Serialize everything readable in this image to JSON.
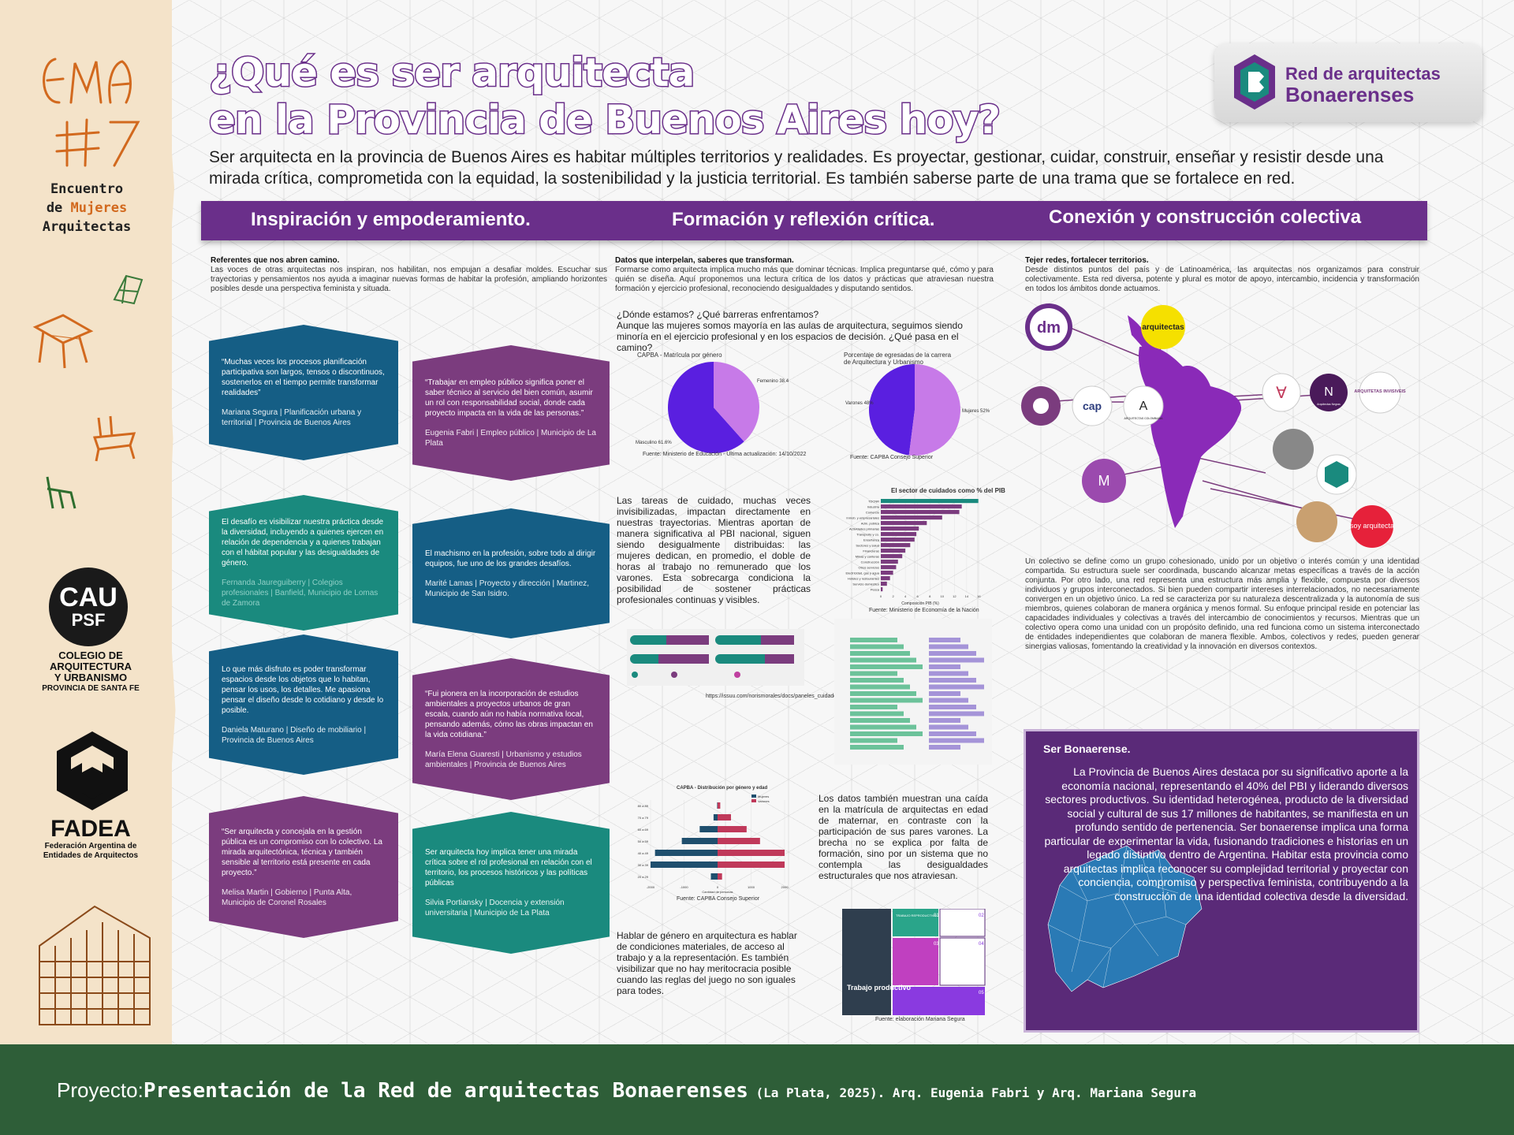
{
  "header": {
    "title_line1": "¿Qué es ser arquitecta",
    "title_line2": "en la Provincia de Buenos Aires hoy?",
    "intro": "Ser arquitecta en la provincia de Buenos Aires es habitar múltiples territorios y realidades. Es proyectar, gestionar, cuidar, construir, enseñar y resistir desde una mirada crítica, comprometida con la equidad, la sostenibilidad y la justicia territorial. Es también saberse parte de una trama que se fortalece en red.",
    "logo_line1": "Red de arquitectas",
    "logo_line2": "Bonaerenses"
  },
  "left_strip": {
    "ema_logo": "EMA #7",
    "ema_line1": "Encuentro",
    "ema_line2_a": "de ",
    "ema_line2_b": "Mujeres",
    "ema_line3": "Arquitectas",
    "cau_big": "CAU",
    "cau_small": "PSF",
    "cau_l1": "COLEGIO DE",
    "cau_l2": "ARQUITECTURA",
    "cau_l3": "Y URBANISMO",
    "cau_l4": "PROVINCIA DE SANTA FE",
    "fadea_name": "FADEA",
    "fadea_sub": "Federación Argentina de Entidades de Arquitectos"
  },
  "sections": {
    "s1": "Inspiración y empoderamiento.",
    "s2": "Formación y reflexión crítica.",
    "s3": "Conexión y construcción colectiva"
  },
  "col1": {
    "head": "Referentes que nos abren camino.",
    "body": "Las voces de otras arquitectas nos inspiran, nos habilitan, nos empujan a desafiar moldes. Escuchar sus trayectorias y pensamientos nos ayuda a imaginar nuevas formas de habitar la profesión, ampliando horizontes posibles desde una perspectiva feminista y situada.",
    "quotes": [
      {
        "text": "“Muchas veces los procesos planificación participativa son largos, tensos o discontinuos, sostenerlos en el tiempo permite transformar realidades”",
        "author": "Mariana Segura | Planificación urbana y territorial | Provincia de Buenos Aires"
      },
      {
        "text": "“Trabajar en empleo público significa poner el saber técnico al servicio del bien común, asumir un rol con responsabilidad social, donde cada proyecto impacta en la vida de las personas.”",
        "author": "Eugenia Fabri | Empleo público | Municipio de La Plata"
      },
      {
        "text": "El desafío es visibilizar nuestra práctica desde la diversidad, incluyendo a quienes ejercen en relación de dependencia y a quienes trabajan con el hábitat popular y las desigualdades de género.",
        "author": "Fernanda Jaureguiberry | Colegios profesionales | Banfield, Municipio de Lomas de Zamora"
      },
      {
        "text": "El machismo en la profesión, sobre todo al dirigir equipos, fue uno de los grandes desafíos.",
        "author": "Marité Lamas | Proyecto y dirección | Martinez, Municipio de San Isidro."
      },
      {
        "text": "Lo que más disfruto es poder transformar espacios desde los objetos que lo habitan, pensar los usos, los detalles. Me apasiona pensar el diseño desde lo cotidiano y desde lo posible.",
        "author": "Daniela Maturano | Diseño de mobiliario | Provincia de Buenos Aires"
      },
      {
        "text": "“Fui pionera en la incorporación de estudios ambientales a proyectos urbanos de gran escala, cuando aún no había normativa local, pensando además, cómo las obras impactan en la vida cotidiana.”",
        "author": "María Elena Guaresti | Urbanismo y estudios ambientales | Provincia de Buenos Aires"
      },
      {
        "text": "“Ser arquitecta y concejala en la gestión pública es un compromiso con lo colectivo. La mirada arquitectónica, técnica y también sensible al territorio está presente en cada proyecto.”",
        "author": "Melisa Martin | Gobierno | Punta Alta, Municipio de Coronel Rosales"
      },
      {
        "text": "Ser arquitecta hoy implica tener una mirada crítica sobre el rol profesional en relación con el territorio, los procesos históricos y las políticas públicas",
        "author": "Silvia Portiansky | Docencia y extensión universitaria | Municipio de La Plata"
      }
    ]
  },
  "col2": {
    "head": "Datos que interpelan, saberes que transforman.",
    "body": "Formarse como arquitecta implica mucho más que dominar técnicas. Implica preguntarse qué, cómo y para quién se diseña. Aquí proponemos una lectura crítica de los datos y prácticas que atraviesan nuestra formación y ejercicio profesional, reconociendo desigualdades y disputando sentidos.",
    "question": "¿Dónde estamos? ¿Qué barreras enfrentamos?",
    "question_body": "Aunque las mujeres somos mayoría en las aulas de arquitectura, seguimos siendo minoría en el ejercicio profesional y en los espacios de decisión. ¿Qué pasa en el camino?",
    "care_text": "Las tareas de cuidado, muchas veces invisibilizadas, impactan directamente en nuestras trayectorias. Mientras aportan de manera significativa al PBI nacional, siguen siendo desigualmente distribuidas: las mujeres dedican, en promedio, el doble de horas al trabajo no remunerado que los varones. Esta sobrecarga condiciona la posibilidad de sostener prácticas profesionales continuas y visibles.",
    "data_text": "Los datos también muestran una caída en la matrícula de arquitectas en edad de maternar, en contraste con la participación de sus pares varones. La brecha no se explica por falta de formación, sino por un sistema que no contempla las desigualdades estructurales que nos atraviesan.",
    "gender_text": "Hablar de género en arquitectura es hablar de condiciones materiales, de acceso al trabajo y a la representación. Es también visibilizar que no hay meritocracia posible cuando las reglas del juego no son iguales para todes.",
    "url": "https://issuu.com/norismorales/docs/paneles_cuidado_final",
    "src_pie1": "Fuente: Ministerio de Educación - Última actualización: 14/10/2022",
    "src_pie2": "Fuente: CAPBA Consejo Superior",
    "src_bar": "Fuente: Ministerio de Economía de la Nación",
    "src_pyramid": "Fuente: CAPBA Consejo Superior",
    "src_diagram": "Fuente: elaboración Mariana Segura",
    "pyramid_legend_a": "Mujeres",
    "pyramid_legend_b": "Varones",
    "pyramid_xlabel": "Cantidad de personas",
    "diagram_productivo": "Trabajo productivo",
    "diagram_tag": "TRABAJO REPRODUCTIVO",
    "diagram_n1": "01",
    "diagram_n2": "02",
    "diagram_n3": "03",
    "diagram_n4": "04",
    "diagram_n5": "05"
  },
  "chart_data": [
    {
      "type": "pie",
      "title": "CAPBA - Matrícula por género",
      "labels": [
        "Masculino",
        "Femenino"
      ],
      "values": [
        61.6,
        38.4
      ],
      "label_texts": [
        "Masculino 61.6%",
        "Femenino 38.4%"
      ],
      "colors": [
        "#5a1fe0",
        "#c77ae8"
      ]
    },
    {
      "type": "pie",
      "title": "Porcentaje de egresadas de la carrera de Arquitectura y Urbanismo",
      "labels": [
        "Varones",
        "Mujeres"
      ],
      "values": [
        48,
        52
      ],
      "label_texts": [
        "Varones 48%",
        "Mujeres 52%"
      ],
      "colors": [
        "#5a1fe0",
        "#c77ae8"
      ]
    },
    {
      "type": "bar",
      "title": "El sector de cuidados como % del PIB",
      "xlabel": "Composición PIB (%)",
      "categories": [
        "TDCNR",
        "Industria",
        "Comercio",
        "Inmob. y empresariales",
        "Adm. pública",
        "Actividades primarias",
        "Transporte y co.",
        "Enseñanza",
        "Sectores y salud",
        "Financieras",
        "Minas y canteras",
        "Construcción",
        "Otros servicios",
        "Electricidad, gas y agua",
        "Hoteles y restaurantes",
        "Servicio doméstico",
        "Pesca"
      ],
      "values": [
        15.9,
        13.2,
        12.8,
        10.0,
        7.5,
        6.2,
        5.8,
        5.5,
        4.8,
        4.0,
        3.5,
        2.8,
        2.5,
        2.0,
        1.5,
        1.0,
        0.3
      ],
      "ticks": [
        "0",
        "2",
        "4",
        "6",
        "8",
        "10",
        "12",
        "14",
        "16",
        "18"
      ],
      "xlim": [
        0,
        18
      ]
    },
    {
      "type": "bar",
      "title": "CAPBA - Distribución por género y edad",
      "categories": [
        "80 a 89",
        "70 a 79",
        "60 a 69",
        "50 a 59",
        "40 a 49",
        "30 a 39",
        "20 a 29"
      ],
      "series": [
        {
          "name": "Mujeres",
          "values": [
            20,
            180,
            800,
            1600,
            2800,
            3000,
            300
          ]
        },
        {
          "name": "Varones",
          "values": [
            120,
            600,
            1300,
            1900,
            3000,
            3000,
            200
          ]
        }
      ],
      "ticks": [
        "-2000",
        "-1000",
        "0",
        "1000",
        "2000"
      ]
    }
  ],
  "col3": {
    "head": "Tejer redes, fortalecer territorios.",
    "body": "Desde distintos puntos del país y de Latinoamérica, las arquitectas nos organizamos para construir colectivamente. Esta red diversa, potente y plural es motor de apoyo, intercambio, incidencia y transformación en todos los ámbitos donde actuamos.",
    "net_labels": [
      "arquitectas",
      "Arquitectas Negras",
      "ARQUITETAS INVISIVEIS",
      "ARQUITECTAS COLOMBIANA",
      "soy arquitecta"
    ],
    "long_text": "Un colectivo se define como un grupo cohesionado, unido por un objetivo o interés común y una identidad compartida. Su estructura suele ser coordinada, buscando alcanzar metas específicas a través de la acción conjunta. Por otro lado, una red representa una estructura más amplia y flexible, compuesta por diversos individuos y grupos interconectados. Si bien pueden compartir intereses interrelacionados, no necesariamente convergen en un objetivo único. La red se caracteriza por su naturaleza descentralizada y la autonomía de sus miembros, quienes colaboran de manera orgánica y menos formal. Su enfoque principal reside en potenciar las capacidades individuales y colectivas a través del intercambio de conocimientos y recursos. Mientras que un colectivo opera como una unidad con un propósito definido, una red funciona como un sistema interconectado de entidades independientes que colaboran de manera flexible. Ambos, colectivos y redes, pueden generar sinergias valiosas, fomentando la creatividad y la innovación en diversos contextos.",
    "ser_title": "Ser Bonaerense.",
    "ser_body": "La Provincia de Buenos Aires destaca por su significativo aporte a la economía nacional, representando el 40% del PBI y liderando diversos sectores productivos. Su identidad heterogénea, producto de la diversidad social y cultural de sus 17 millones de habitantes, se manifiesta en un profundo sentido de pertenencia. Ser bonaerense implica una forma particular de experimentar la vida, fusionando tradiciones e historias en un legado distintivo dentro de Argentina. Habitar esta provincia como arquitectas implica reconocer su complejidad territorial y proyectar con conciencia, compromiso y perspectiva feminista, contribuyendo a la construcción de una identidad colectiva desde la diversidad."
  },
  "footer": {
    "prefix": "Proyecto:",
    "project": "Presentación de la Red de arquitectas Bonaerenses",
    "credit": " (La Plata, 2025). Arq. Eugenia Fabri y Arq. Mariana Segura"
  },
  "colors": {
    "purple": "#6a2f8a",
    "blue": "#155e85",
    "teal": "#1a8a7e",
    "green": "#2e5e38",
    "magenta": "#7b3c7e"
  }
}
